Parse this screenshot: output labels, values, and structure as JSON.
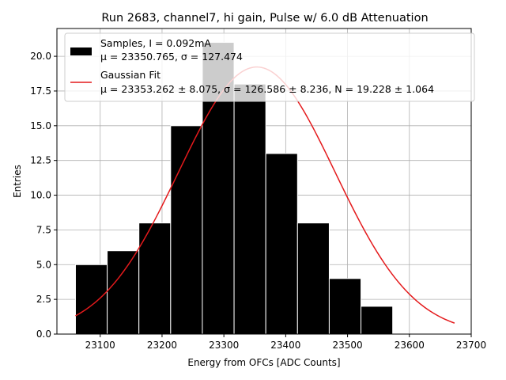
{
  "chart_data": {
    "type": "bar",
    "title": "Run 2683, channel7, hi gain, Pulse w/ 6.0 dB Attenuation",
    "xlabel": "Energy from OFCs [ADC Counts]",
    "ylabel": "Entries",
    "xlim": [
      23030,
      23700
    ],
    "ylim": [
      0,
      22
    ],
    "grid": true,
    "legend_position": "top-right",
    "x_ticks": [
      "23100",
      "23200",
      "23300",
      "23400",
      "23500",
      "23600",
      "23700"
    ],
    "y_ticks": [
      "0.0",
      "2.5",
      "5.0",
      "7.5",
      "10.0",
      "12.5",
      "15.0",
      "17.5",
      "20.0"
    ],
    "histogram": {
      "name_line1": "Samples, I = 0.092mA",
      "name_line2": "μ = 23350.765, σ = 127.474",
      "color": "#000000",
      "bin_edges": [
        23060,
        23111.3,
        23162.6,
        23213.9,
        23265.2,
        23316.5,
        23367.8,
        23419.1,
        23470.4,
        23521.7,
        23573.0
      ],
      "counts": [
        5,
        6,
        8,
        15,
        21,
        18,
        13,
        8,
        4,
        2
      ]
    },
    "fit": {
      "name_line1": "Gaussian Fit",
      "name_line2": "μ = 23353.262 ± 8.075, σ = 126.586 ± 8.236, N = 19.228 ± 1.064",
      "color": "#e41a1c",
      "mu": 23353.262,
      "sigma": 126.586,
      "N": 19.228,
      "x_range": [
        23060,
        23673
      ]
    }
  }
}
